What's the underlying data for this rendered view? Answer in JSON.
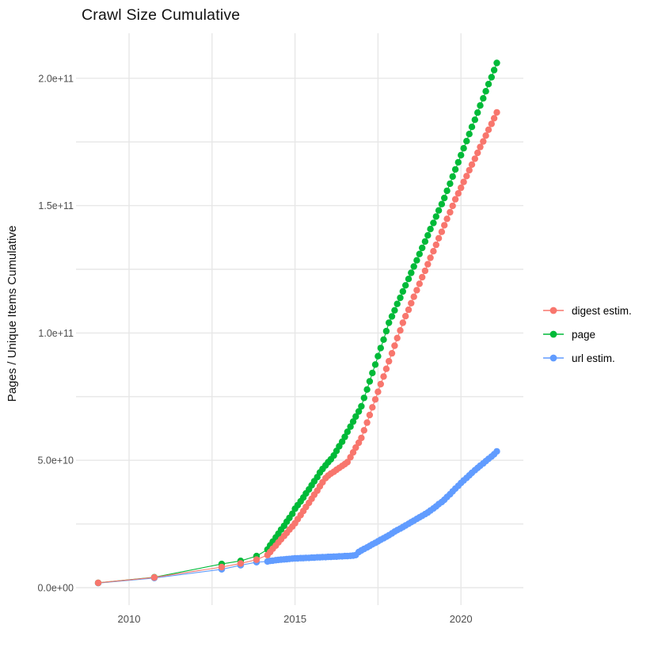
{
  "title": "Crawl Size Cumulative",
  "y_axis": {
    "title": "Pages / Unique Items Cumulative",
    "tick_labels": [
      "0.0e+00",
      "5.0e+10",
      "1.0e+11",
      "1.5e+11",
      "2.0e+11"
    ],
    "tick_values_billions": [
      0,
      50,
      100,
      150,
      200
    ],
    "minor_tick_values_billions": [
      25,
      75,
      125,
      175
    ]
  },
  "x_axis": {
    "tick_labels": [
      "2010",
      "2015",
      "2020"
    ],
    "tick_values": [
      2010,
      2015,
      2020
    ],
    "minor_tick_values": [
      2012.5,
      2017.5
    ]
  },
  "legend": {
    "entries": [
      {
        "label": "digest estim.",
        "color": "#F8766D"
      },
      {
        "label": "page",
        "color": "#00BA38"
      },
      {
        "label": "url estim.",
        "color": "#619CFF"
      }
    ]
  },
  "colors": {
    "digest": "#F8766D",
    "page": "#00BA38",
    "url": "#619CFF",
    "gridline": "#e7e7e7",
    "tick_text": "#4d4d4d"
  },
  "chart_data": {
    "type": "line",
    "title": "Crawl Size Cumulative",
    "xlabel": "",
    "ylabel": "Pages / Unique Items Cumulative",
    "value_unit": "pages, billions (1e9)",
    "xlim": [
      2008.6,
      2021.9
    ],
    "ylim_billions": [
      -2.5,
      217
    ],
    "grid": true,
    "legend_position": "right-center",
    "marker": "point",
    "series": [
      {
        "name": "digest estim.",
        "color": "#F8766D",
        "points": [
          [
            2009.07,
            1.9
          ],
          [
            2010.76,
            4.0
          ],
          [
            2012.79,
            8.1
          ],
          [
            2013.36,
            9.5
          ],
          [
            2013.84,
            11.0
          ],
          [
            2014.17,
            12.8
          ],
          [
            2014.25,
            14.0
          ],
          [
            2014.33,
            15.3
          ],
          [
            2014.42,
            16.5
          ],
          [
            2014.5,
            17.8
          ],
          [
            2014.58,
            19.0
          ],
          [
            2014.67,
            20.3
          ],
          [
            2014.75,
            21.5
          ],
          [
            2014.83,
            22.8
          ],
          [
            2014.92,
            24.0
          ],
          [
            2015.0,
            25.3
          ],
          [
            2015.08,
            26.9
          ],
          [
            2015.17,
            28.5
          ],
          [
            2015.25,
            30.1
          ],
          [
            2015.33,
            31.7
          ],
          [
            2015.42,
            33.3
          ],
          [
            2015.5,
            34.9
          ],
          [
            2015.58,
            36.5
          ],
          [
            2015.67,
            38.1
          ],
          [
            2015.75,
            39.8
          ],
          [
            2015.83,
            41.4
          ],
          [
            2015.92,
            43.0
          ],
          [
            2016.0,
            44.0
          ],
          [
            2016.08,
            44.8
          ],
          [
            2016.17,
            45.5
          ],
          [
            2016.25,
            46.3
          ],
          [
            2016.33,
            47.0
          ],
          [
            2016.42,
            47.8
          ],
          [
            2016.5,
            48.5
          ],
          [
            2016.58,
            49.3
          ],
          [
            2016.67,
            51.2
          ],
          [
            2016.75,
            53.1
          ],
          [
            2016.83,
            55.0
          ],
          [
            2016.92,
            56.9
          ],
          [
            2017.0,
            58.8
          ],
          [
            2017.08,
            61.8
          ],
          [
            2017.17,
            64.8
          ],
          [
            2017.25,
            67.8
          ],
          [
            2017.33,
            70.8
          ],
          [
            2017.42,
            73.9
          ],
          [
            2017.5,
            76.9
          ],
          [
            2017.58,
            79.9
          ],
          [
            2017.67,
            82.9
          ],
          [
            2017.75,
            85.9
          ],
          [
            2017.83,
            88.9
          ],
          [
            2017.92,
            92.0
          ],
          [
            2018.0,
            95.0
          ],
          [
            2018.08,
            98.0
          ],
          [
            2018.17,
            101.0
          ],
          [
            2018.25,
            104.0
          ],
          [
            2018.33,
            106.6
          ],
          [
            2018.42,
            109.1
          ],
          [
            2018.5,
            111.7
          ],
          [
            2018.58,
            114.2
          ],
          [
            2018.67,
            116.8
          ],
          [
            2018.75,
            119.3
          ],
          [
            2018.83,
            121.9
          ],
          [
            2018.92,
            124.4
          ],
          [
            2019.0,
            127.0
          ],
          [
            2019.08,
            129.5
          ],
          [
            2019.17,
            132.1
          ],
          [
            2019.25,
            134.6
          ],
          [
            2019.33,
            137.2
          ],
          [
            2019.42,
            139.7
          ],
          [
            2019.5,
            142.3
          ],
          [
            2019.58,
            144.8
          ],
          [
            2019.67,
            147.4
          ],
          [
            2019.75,
            149.9
          ],
          [
            2019.83,
            152.5
          ],
          [
            2019.92,
            154.8
          ],
          [
            2020.0,
            157.0
          ],
          [
            2020.08,
            159.3
          ],
          [
            2020.17,
            161.6
          ],
          [
            2020.25,
            163.9
          ],
          [
            2020.33,
            166.1
          ],
          [
            2020.42,
            168.4
          ],
          [
            2020.5,
            170.7
          ],
          [
            2020.58,
            173.0
          ],
          [
            2020.67,
            175.2
          ],
          [
            2020.75,
            177.5
          ],
          [
            2020.83,
            179.8
          ],
          [
            2020.92,
            182.1
          ],
          [
            2021.0,
            184.3
          ],
          [
            2021.08,
            186.6
          ]
        ]
      },
      {
        "name": "page",
        "color": "#00BA38",
        "points": [
          [
            2009.07,
            1.9
          ],
          [
            2010.76,
            4.1
          ],
          [
            2012.79,
            9.3
          ],
          [
            2013.36,
            10.5
          ],
          [
            2013.84,
            12.4
          ],
          [
            2014.17,
            15.0
          ],
          [
            2014.25,
            16.6
          ],
          [
            2014.33,
            18.1
          ],
          [
            2014.42,
            19.7
          ],
          [
            2014.5,
            21.2
          ],
          [
            2014.58,
            22.8
          ],
          [
            2014.67,
            24.3
          ],
          [
            2014.75,
            25.9
          ],
          [
            2014.83,
            27.4
          ],
          [
            2014.92,
            29.0
          ],
          [
            2015.0,
            31.0
          ],
          [
            2015.08,
            32.4
          ],
          [
            2015.17,
            33.9
          ],
          [
            2015.25,
            35.4
          ],
          [
            2015.33,
            37.0
          ],
          [
            2015.42,
            38.6
          ],
          [
            2015.5,
            40.2
          ],
          [
            2015.58,
            41.8
          ],
          [
            2015.67,
            43.4
          ],
          [
            2015.75,
            45.2
          ],
          [
            2015.83,
            46.6
          ],
          [
            2015.92,
            48.0
          ],
          [
            2016.0,
            49.3
          ],
          [
            2016.08,
            50.4
          ],
          [
            2016.17,
            51.9
          ],
          [
            2016.25,
            53.7
          ],
          [
            2016.33,
            55.5
          ],
          [
            2016.42,
            57.3
          ],
          [
            2016.5,
            59.2
          ],
          [
            2016.58,
            61.2
          ],
          [
            2016.67,
            63.2
          ],
          [
            2016.75,
            65.2
          ],
          [
            2016.83,
            67.2
          ],
          [
            2016.92,
            69.2
          ],
          [
            2017.0,
            71.2
          ],
          [
            2017.08,
            74.5
          ],
          [
            2017.17,
            77.8
          ],
          [
            2017.25,
            81.0
          ],
          [
            2017.33,
            84.3
          ],
          [
            2017.42,
            87.6
          ],
          [
            2017.5,
            90.9
          ],
          [
            2017.58,
            94.1
          ],
          [
            2017.67,
            97.4
          ],
          [
            2017.75,
            100.7
          ],
          [
            2017.83,
            104.0
          ],
          [
            2017.92,
            106.5
          ],
          [
            2018.0,
            108.9
          ],
          [
            2018.08,
            111.4
          ],
          [
            2018.17,
            113.8
          ],
          [
            2018.25,
            116.3
          ],
          [
            2018.33,
            118.7
          ],
          [
            2018.42,
            121.2
          ],
          [
            2018.5,
            123.6
          ],
          [
            2018.58,
            126.1
          ],
          [
            2018.67,
            128.5
          ],
          [
            2018.75,
            131.0
          ],
          [
            2018.83,
            133.4
          ],
          [
            2018.92,
            135.9
          ],
          [
            2019.0,
            138.3
          ],
          [
            2019.08,
            140.8
          ],
          [
            2019.17,
            143.2
          ],
          [
            2019.25,
            145.7
          ],
          [
            2019.33,
            148.1
          ],
          [
            2019.42,
            150.6
          ],
          [
            2019.5,
            153.0
          ],
          [
            2019.58,
            155.8
          ],
          [
            2019.67,
            158.6
          ],
          [
            2019.75,
            161.4
          ],
          [
            2019.83,
            164.2
          ],
          [
            2019.92,
            167.0
          ],
          [
            2020.0,
            169.8
          ],
          [
            2020.08,
            172.5
          ],
          [
            2020.17,
            175.3
          ],
          [
            2020.25,
            178.1
          ],
          [
            2020.33,
            180.9
          ],
          [
            2020.42,
            183.7
          ],
          [
            2020.5,
            186.5
          ],
          [
            2020.58,
            189.3
          ],
          [
            2020.67,
            192.1
          ],
          [
            2020.75,
            194.9
          ],
          [
            2020.83,
            197.7
          ],
          [
            2020.92,
            200.4
          ],
          [
            2021.0,
            203.2
          ],
          [
            2021.08,
            206.0
          ]
        ]
      },
      {
        "name": "url estim.",
        "color": "#619CFF",
        "points": [
          [
            2009.07,
            1.8
          ],
          [
            2010.76,
            3.8
          ],
          [
            2012.79,
            7.2
          ],
          [
            2013.36,
            8.8
          ],
          [
            2013.84,
            10.0
          ],
          [
            2014.17,
            10.3
          ],
          [
            2014.25,
            10.5
          ],
          [
            2014.33,
            10.6
          ],
          [
            2014.42,
            10.8
          ],
          [
            2014.5,
            10.9
          ],
          [
            2014.58,
            11.0
          ],
          [
            2014.67,
            11.1
          ],
          [
            2014.75,
            11.2
          ],
          [
            2014.83,
            11.3
          ],
          [
            2014.92,
            11.4
          ],
          [
            2015.0,
            11.5
          ],
          [
            2015.08,
            11.5
          ],
          [
            2015.17,
            11.6
          ],
          [
            2015.25,
            11.6
          ],
          [
            2015.33,
            11.7
          ],
          [
            2015.42,
            11.7
          ],
          [
            2015.5,
            11.8
          ],
          [
            2015.58,
            11.8
          ],
          [
            2015.67,
            11.9
          ],
          [
            2015.75,
            11.9
          ],
          [
            2015.83,
            12.0
          ],
          [
            2015.92,
            12.0
          ],
          [
            2016.0,
            12.1
          ],
          [
            2016.08,
            12.1
          ],
          [
            2016.17,
            12.2
          ],
          [
            2016.25,
            12.2
          ],
          [
            2016.33,
            12.3
          ],
          [
            2016.42,
            12.3
          ],
          [
            2016.5,
            12.4
          ],
          [
            2016.58,
            12.4
          ],
          [
            2016.67,
            12.5
          ],
          [
            2016.75,
            12.6
          ],
          [
            2016.83,
            12.8
          ],
          [
            2016.92,
            14.0
          ],
          [
            2017.0,
            14.6
          ],
          [
            2017.08,
            15.2
          ],
          [
            2017.17,
            15.8
          ],
          [
            2017.25,
            16.4
          ],
          [
            2017.33,
            17.0
          ],
          [
            2017.42,
            17.6
          ],
          [
            2017.5,
            18.2
          ],
          [
            2017.58,
            18.8
          ],
          [
            2017.67,
            19.4
          ],
          [
            2017.75,
            20.0
          ],
          [
            2017.83,
            20.6
          ],
          [
            2017.92,
            21.3
          ],
          [
            2018.0,
            22.0
          ],
          [
            2018.08,
            22.6
          ],
          [
            2018.17,
            23.2
          ],
          [
            2018.25,
            23.8
          ],
          [
            2018.33,
            24.4
          ],
          [
            2018.42,
            25.1
          ],
          [
            2018.5,
            25.7
          ],
          [
            2018.58,
            26.3
          ],
          [
            2018.67,
            27.0
          ],
          [
            2018.75,
            27.6
          ],
          [
            2018.83,
            28.2
          ],
          [
            2018.92,
            28.9
          ],
          [
            2019.0,
            29.5
          ],
          [
            2019.08,
            30.3
          ],
          [
            2019.17,
            31.1
          ],
          [
            2019.25,
            31.9
          ],
          [
            2019.33,
            32.8
          ],
          [
            2019.42,
            33.6
          ],
          [
            2019.5,
            34.5
          ],
          [
            2019.58,
            35.6
          ],
          [
            2019.67,
            36.7
          ],
          [
            2019.75,
            37.8
          ],
          [
            2019.83,
            38.9
          ],
          [
            2019.92,
            40.0
          ],
          [
            2020.0,
            41.1
          ],
          [
            2020.08,
            42.1
          ],
          [
            2020.17,
            43.1
          ],
          [
            2020.25,
            44.1
          ],
          [
            2020.33,
            45.1
          ],
          [
            2020.42,
            46.1
          ],
          [
            2020.5,
            47.0
          ],
          [
            2020.58,
            47.9
          ],
          [
            2020.67,
            48.8
          ],
          [
            2020.75,
            49.7
          ],
          [
            2020.83,
            50.6
          ],
          [
            2020.92,
            51.5
          ],
          [
            2021.0,
            52.4
          ],
          [
            2021.08,
            53.5
          ]
        ]
      }
    ]
  }
}
